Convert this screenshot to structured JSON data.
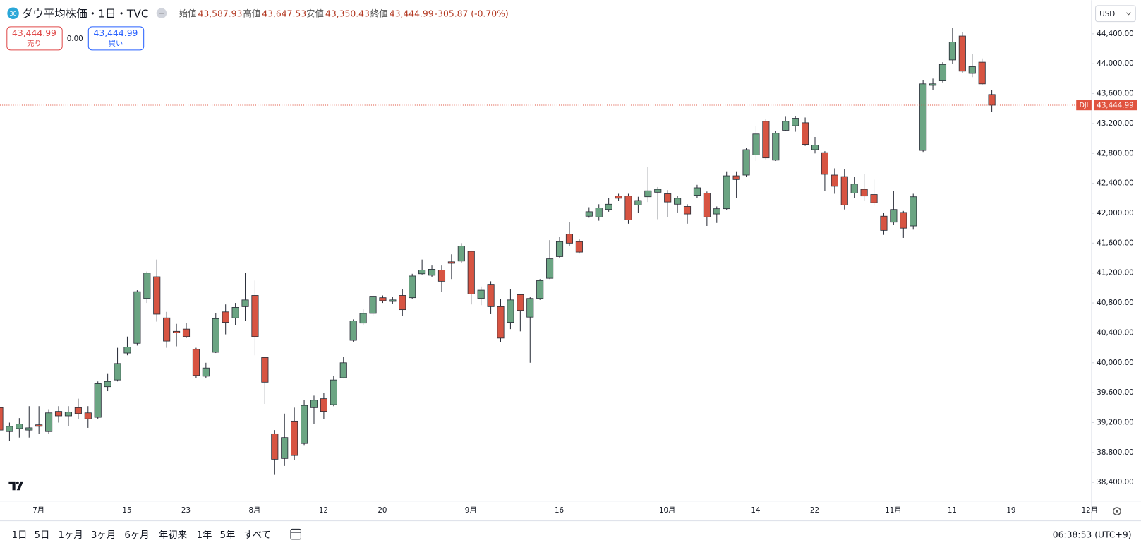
{
  "header": {
    "badge": "30",
    "title": "ダウ平均株価・1日・TVC",
    "open_label": "始値",
    "open": "43,587.93",
    "high_label": "高値",
    "high": "43,647.53",
    "low_label": "安値",
    "low": "43,350.43",
    "close_label": "終値",
    "close": "43,444.99",
    "change": "-305.87 (-0.70%)"
  },
  "trade": {
    "sell_price": "43,444.99",
    "sell_label": "売り",
    "spread": "0.00",
    "buy_price": "43,444.99",
    "buy_label": "買い"
  },
  "currency": "USD",
  "toolbar": {
    "ranges": [
      "1日",
      "5日",
      "1ヶ月",
      "3ヶ月",
      "6ヶ月",
      "年初来",
      "1年",
      "5年",
      "すべて"
    ],
    "time": "06:38:53 (UTC+9)"
  },
  "chart_data": {
    "type": "candlestick",
    "categories": [
      null,
      null,
      null,
      null,
      "7月",
      null,
      null,
      null,
      null,
      null,
      null,
      null,
      null,
      "15",
      null,
      null,
      null,
      null,
      null,
      "23",
      null,
      null,
      null,
      null,
      null,
      null,
      "8月",
      null,
      null,
      null,
      null,
      null,
      null,
      "12",
      null,
      null,
      null,
      null,
      null,
      "20",
      null,
      null,
      null,
      null,
      null,
      null,
      null,
      null,
      "9月",
      null,
      null,
      null,
      null,
      null,
      null,
      null,
      null,
      "16",
      null,
      null,
      null,
      null,
      null,
      null,
      null,
      null,
      null,
      null,
      "10月",
      null,
      null,
      null,
      null,
      null,
      null,
      null,
      null,
      "14",
      null,
      null,
      null,
      null,
      null,
      "22",
      null,
      null,
      null,
      null,
      null,
      null,
      null,
      "11月",
      null,
      null,
      null,
      null,
      null,
      "11",
      null,
      null,
      null,
      null,
      null,
      "19",
      null,
      null,
      null,
      null,
      null,
      null,
      null,
      "12月"
    ],
    "open": [
      39400,
      39080,
      39120,
      39100,
      39170,
      39080,
      39350,
      39290,
      39400,
      39330,
      39270,
      39680,
      39770,
      40130,
      40260,
      40860,
      41150,
      40600,
      40420,
      40450,
      40180,
      39820,
      40140,
      40680,
      40600,
      40750,
      40900,
      40070,
      39050,
      38720,
      39220,
      38920,
      39400,
      39520,
      39440,
      39800,
      40300,
      40530,
      40660,
      40870,
      40820,
      40900,
      40870,
      41190,
      41170,
      41240,
      41350,
      41360,
      41490,
      40860,
      41050,
      40750,
      40540,
      40910,
      40610,
      40860,
      41130,
      41420,
      41720,
      41620,
      41960,
      41950,
      42050,
      42230,
      42230,
      42110,
      42220,
      42280,
      42260,
      42120,
      42090,
      42240,
      42270,
      41990,
      42060,
      42500,
      42510,
      42780,
      43230,
      42710,
      43110,
      43170,
      43210,
      42850,
      42810,
      42510,
      42490,
      42270,
      42320,
      42250,
      41960,
      41880,
      42010,
      41830,
      42840,
      43710,
      43770,
      44050,
      44370,
      43870,
      44020,
      43587.93,
      null,
      null,
      null,
      null,
      null,
      null,
      null,
      null,
      null,
      null
    ],
    "high": [
      39450,
      39200,
      39260,
      39420,
      39420,
      39370,
      39420,
      39420,
      39520,
      39420,
      39750,
      39850,
      40200,
      40350,
      40970,
      41220,
      41380,
      40680,
      40520,
      40530,
      40200,
      40000,
      40660,
      40780,
      40800,
      41200,
      41100,
      40070,
      39100,
      39320,
      39400,
      39500,
      39560,
      39600,
      39820,
      40080,
      40580,
      40720,
      40900,
      40900,
      40880,
      40980,
      41190,
      41380,
      41300,
      41300,
      41450,
      41600,
      41500,
      41020,
      41090,
      40850,
      40980,
      40920,
      40880,
      41120,
      41640,
      41680,
      41880,
      41650,
      42080,
      42120,
      42200,
      42260,
      42260,
      42220,
      42620,
      42350,
      42310,
      42230,
      42120,
      42380,
      42290,
      42090,
      42560,
      42560,
      42870,
      43170,
      43260,
      43100,
      43290,
      43300,
      43280,
      43020,
      42830,
      42600,
      42590,
      42490,
      42520,
      42450,
      42000,
      42300,
      42030,
      42260,
      43780,
      43800,
      44020,
      44480,
      44420,
      44130,
      44070,
      43647.53,
      null,
      null,
      null,
      null,
      null,
      null,
      null,
      null,
      null,
      null
    ],
    "low": [
      39050,
      38950,
      39000,
      39000,
      39050,
      39050,
      39200,
      39150,
      39250,
      39130,
      39250,
      39620,
      39750,
      40100,
      40230,
      40800,
      40550,
      40200,
      40220,
      40330,
      39800,
      39790,
      40130,
      40380,
      40500,
      40560,
      40100,
      39450,
      38500,
      38620,
      38700,
      38900,
      39180,
      39250,
      39420,
      39790,
      40280,
      40500,
      40620,
      40800,
      40790,
      40630,
      40850,
      41180,
      41150,
      40950,
      41120,
      41340,
      40780,
      40770,
      40650,
      40280,
      40450,
      40420,
      40000,
      40840,
      41120,
      41400,
      41560,
      41460,
      41940,
      41900,
      42020,
      42170,
      41860,
      42000,
      42150,
      41920,
      41950,
      42010,
      41860,
      42200,
      41830,
      41870,
      42040,
      42200,
      42490,
      42700,
      42720,
      42700,
      43100,
      43090,
      42900,
      42800,
      42300,
      42260,
      42050,
      42200,
      42160,
      42100,
      41710,
      41840,
      41670,
      41780,
      42820,
      43650,
      43750,
      44000,
      43880,
      43820,
      43710,
      43350.43,
      null,
      null,
      null,
      null,
      null,
      null,
      null,
      null,
      null,
      null
    ],
    "close": [
      39100,
      39150,
      39180,
      39130,
      39150,
      39330,
      39290,
      39340,
      39320,
      39250,
      39720,
      39750,
      39990,
      40210,
      40950,
      41200,
      40650,
      40290,
      40400,
      40350,
      39830,
      39930,
      40590,
      40540,
      40740,
      40840,
      40350,
      39740,
      38710,
      39000,
      38760,
      39430,
      39500,
      39350,
      39770,
      40000,
      40560,
      40660,
      40890,
      40830,
      40840,
      40710,
      41160,
      41240,
      41250,
      41090,
      41330,
      41560,
      40920,
      40970,
      40750,
      40330,
      40840,
      40700,
      40860,
      41100,
      41390,
      41620,
      41600,
      41480,
      42020,
      42070,
      42120,
      42200,
      41910,
      42170,
      42300,
      42320,
      42150,
      42200,
      41990,
      42340,
      41950,
      42060,
      42500,
      42450,
      42850,
      43060,
      42740,
      43070,
      43230,
      43270,
      42920,
      42910,
      42520,
      42360,
      42110,
      42390,
      42230,
      42140,
      41770,
      42050,
      41800,
      42220,
      43730,
      43730,
      43990,
      44290,
      43900,
      43960,
      43730,
      43444.99,
      null,
      null,
      null,
      null,
      null,
      null,
      null,
      null,
      null,
      null
    ],
    "up_color": "#6ba583",
    "down_color": "#d75442",
    "line_color": "#e0533f",
    "ylim": [
      38150,
      44850
    ],
    "yticks": [
      {
        "value": 38400,
        "label": "38,400.00"
      },
      {
        "value": 38800,
        "label": "38,800.00"
      },
      {
        "value": 39200,
        "label": "39,200.00"
      },
      {
        "value": 39600,
        "label": "39,600.00"
      },
      {
        "value": 40000,
        "label": "40,000.00"
      },
      {
        "value": 40400,
        "label": "40,400.00"
      },
      {
        "value": 40800,
        "label": "40,800.00"
      },
      {
        "value": 41200,
        "label": "41,200.00"
      },
      {
        "value": 41600,
        "label": "41,600.00"
      },
      {
        "value": 42000,
        "label": "42,000.00"
      },
      {
        "value": 42400,
        "label": "42,400.00"
      },
      {
        "value": 42800,
        "label": "42,800.00"
      },
      {
        "value": 43200,
        "label": "43,200.00"
      },
      {
        "value": 43600,
        "label": "43,600.00"
      },
      {
        "value": 44000,
        "label": "44,000.00"
      },
      {
        "value": 44400,
        "label": "44,400.00"
      }
    ],
    "grid": false,
    "last_price": {
      "value": 43444.99,
      "label": "43,444.99"
    },
    "last_price_symbol": "DJI"
  }
}
